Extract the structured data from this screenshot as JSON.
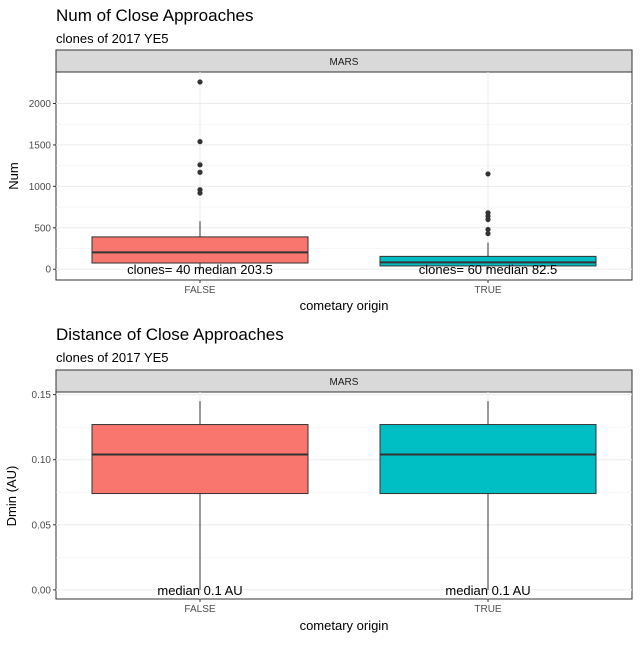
{
  "chart_data": [
    {
      "type": "box",
      "title": "Num of Close Approaches",
      "subtitle": "clones of 2017 YE5",
      "facet": "MARS",
      "xlabel": "cometary origin",
      "ylabel": "Num",
      "ylim": [
        -130,
        2380
      ],
      "yticks": [
        0,
        500,
        1000,
        1500,
        2000
      ],
      "ytick_labels": [
        "0",
        "500",
        "1000",
        "1500",
        "2000"
      ],
      "categories": [
        "FALSE",
        "TRUE"
      ],
      "colors": [
        "#F8766D",
        "#00BFC4"
      ],
      "boxes": [
        {
          "category": "FALSE",
          "whisker_low": 0,
          "q1": 75,
          "median": 203.5,
          "q3": 390,
          "whisker_high": 580,
          "outliers": [
            2260,
            1540,
            1260,
            1170,
            960,
            920
          ]
        },
        {
          "category": "TRUE",
          "whisker_low": 0,
          "q1": 40,
          "median": 82.5,
          "q3": 155,
          "whisker_high": 320,
          "outliers": [
            1150,
            680,
            640,
            600,
            480,
            430
          ]
        }
      ],
      "annotations": [
        {
          "category": "FALSE",
          "y": 0,
          "text": "clones= 40 median 203.5"
        },
        {
          "category": "TRUE",
          "y": 0,
          "text": "clones= 60 median 82.5"
        }
      ],
      "grid": true,
      "legend": "none"
    },
    {
      "type": "box",
      "title": "Distance of Close Approaches",
      "subtitle": "clones of 2017 YE5",
      "facet": "MARS",
      "xlabel": "cometary origin",
      "ylabel": "Dmin (AU)",
      "ylim": [
        -0.007,
        0.152
      ],
      "yticks": [
        0,
        0.05,
        0.1,
        0.15
      ],
      "ytick_labels": [
        "0.00",
        "0.05",
        "0.10",
        "0.15"
      ],
      "categories": [
        "FALSE",
        "TRUE"
      ],
      "colors": [
        "#F8766D",
        "#00BFC4"
      ],
      "boxes": [
        {
          "category": "FALSE",
          "whisker_low": 0,
          "q1": 0.074,
          "median": 0.104,
          "q3": 0.127,
          "whisker_high": 0.145,
          "outliers": []
        },
        {
          "category": "TRUE",
          "whisker_low": 0,
          "q1": 0.074,
          "median": 0.104,
          "q3": 0.127,
          "whisker_high": 0.145,
          "outliers": []
        }
      ],
      "annotations": [
        {
          "category": "FALSE",
          "y": 0,
          "text": "median 0.1 AU"
        },
        {
          "category": "TRUE",
          "y": 0,
          "text": "median 0.1 AU"
        }
      ],
      "grid": true,
      "legend": "none"
    }
  ]
}
